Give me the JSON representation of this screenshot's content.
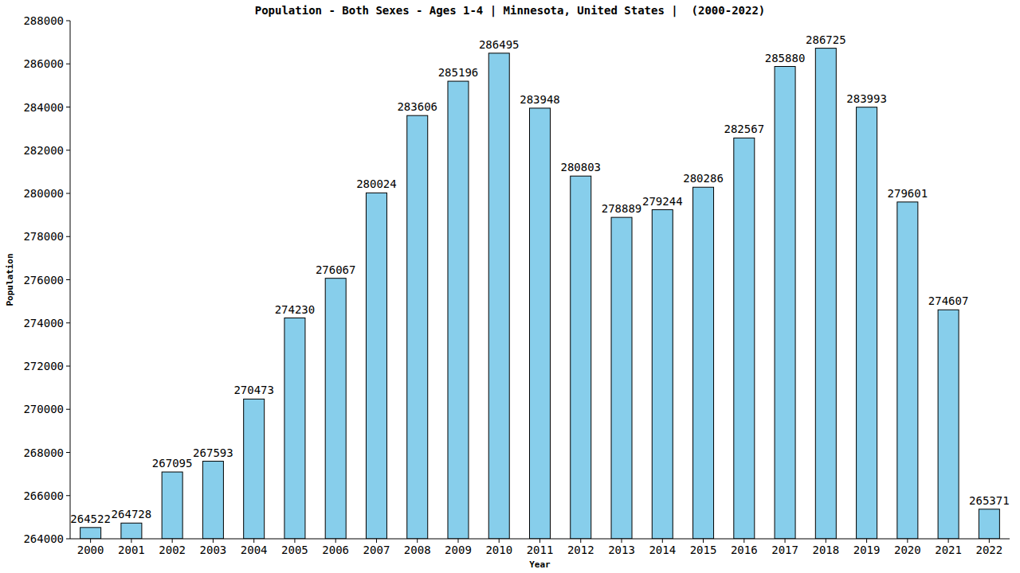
{
  "chart_data": {
    "type": "bar",
    "title": "Population - Both Sexes - Ages 1-4 | Minnesota, United States |  (2000-2022)",
    "x_label": "Year",
    "y_label": "Population",
    "categories": [
      "2000",
      "2001",
      "2002",
      "2003",
      "2004",
      "2005",
      "2006",
      "2007",
      "2008",
      "2009",
      "2010",
      "2011",
      "2012",
      "2013",
      "2014",
      "2015",
      "2016",
      "2017",
      "2018",
      "2019",
      "2020",
      "2021",
      "2022"
    ],
    "values": [
      264522,
      264728,
      267095,
      267593,
      270473,
      274230,
      276067,
      280024,
      283606,
      285196,
      286495,
      283948,
      280803,
      278889,
      279244,
      280286,
      282567,
      285880,
      286725,
      283993,
      279601,
      274607,
      265371
    ],
    "color": "#87ceeb",
    "ylim": [
      264000,
      288000
    ],
    "yticks": [
      264000,
      266000,
      268000,
      270000,
      272000,
      274000,
      276000,
      278000,
      280000,
      282000,
      284000,
      286000,
      288000
    ],
    "grid": false,
    "data_labels": true
  }
}
